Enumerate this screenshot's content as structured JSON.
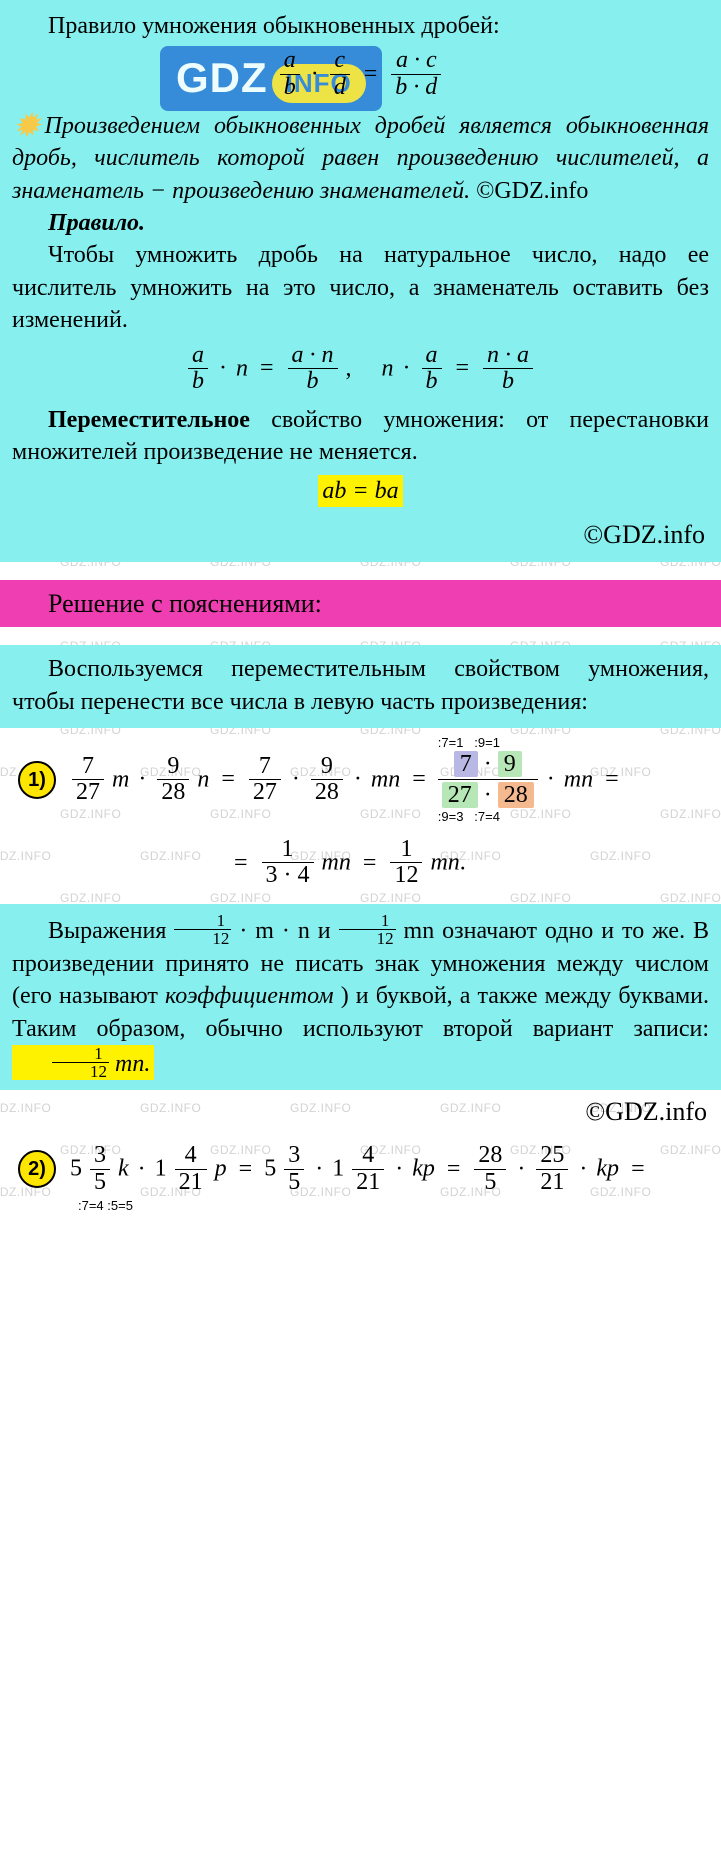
{
  "watermark_text": "GDZ.INFO",
  "logo": {
    "main": "GDZ",
    "pill": "INFO"
  },
  "rule_heading": "Правило умножения обыкновенных дробей:",
  "frac_rule": {
    "lhs": {
      "a_num": "a",
      "a_den": "b",
      "b_num": "c",
      "b_den": "d"
    },
    "rhs": {
      "num": "a · c",
      "den": "b · d"
    }
  },
  "star_text": "Произведением обыкновенных дробей является обыкновенная дробь, числитель которой равен произведению числителей, а знаменатель − произведению знаменателей.",
  "star_copy": " ©GDZ.info",
  "rule2_title": "Правило.",
  "rule2_text": "Чтобы умножить дробь на натуральное число, надо ее числитель умножить на это число, а знаменатель оставить без изменений.",
  "rule2_formula": {
    "left": {
      "num": "a",
      "den": "b",
      "n": "n",
      "res_num": "a · n",
      "res_den": "b"
    },
    "right": {
      "n": "n",
      "num": "a",
      "den": "b",
      "res_num": "n · a",
      "res_den": "b"
    }
  },
  "commut": {
    "title": "Переместительное",
    "rest": " свойство умножения: от перестановки множителей произведение не меняется.",
    "formula": "ab = ba"
  },
  "copyright": "©GDZ.info",
  "solution_header": "Решение с пояснениями:",
  "intro_text": "Воспользуемся переместительным свойством умножения, чтобы перенести все числа в левую часть произведения:",
  "item1": {
    "badge": "1)",
    "l1": {
      "num": "7",
      "den": "27"
    },
    "v1": "m",
    "l2": {
      "num": "9",
      "den": "28"
    },
    "v2": "n",
    "cancel": {
      "top_left": {
        "v": "7",
        "note": ":7=1",
        "bg": "#b9b7e3"
      },
      "top_right": {
        "v": "9",
        "note": ":9=1",
        "bg": "#b7e6b7"
      },
      "bot_left": {
        "v": "27",
        "note": ":9=3",
        "bg": "#b7e6b7"
      },
      "bot_right": {
        "v": "28",
        "note": ":7=4",
        "bg": "#f4b98f"
      }
    },
    "tail_var": "mn",
    "result1": {
      "num": "1",
      "den": "3 · 4"
    },
    "result2": {
      "num": "1",
      "den": "12"
    }
  },
  "expl2": {
    "pre": "Выражения ",
    "f1": {
      "n": "1",
      "d": "12"
    },
    "mid1": " · m · n  и  ",
    "f2": {
      "n": "1",
      "d": "12"
    },
    "mid2": " mn  означают одно и то же. В произведении принято не писать знак умножения между числом (его называют ",
    "coef": "коэффициентом",
    "mid3": ") и буквой, а также между буквами. Таким образом, обычно используют второй вариант записи: ",
    "f3": {
      "n": "1",
      "d": "12"
    },
    "post": " mn."
  },
  "item2": {
    "badge": "2)",
    "a_whole": "5",
    "a": {
      "num": "3",
      "den": "5"
    },
    "av": "k",
    "b_whole": "1",
    "b": {
      "num": "4",
      "den": "21"
    },
    "bv": "p",
    "c_whole": "5",
    "c": {
      "num": "3",
      "den": "5"
    },
    "d_whole": "1",
    "d": {
      "num": "4",
      "den": "21"
    },
    "kp": "kp",
    "e": {
      "num": "28",
      "den": "5"
    },
    "f": {
      "num": "25",
      "den": "21"
    },
    "bottom_note": ":7=4   :5=5"
  },
  "colors": {
    "cyan": "#88efef",
    "pink": "#ef3eb2",
    "yellow_hl": "#fff200",
    "badge_yellow": "#ffe600",
    "watermark": "#c8c8c8",
    "tag_purple": "#b9b7e3",
    "tag_green": "#b7e6b7",
    "tag_orange": "#f4b98f"
  }
}
